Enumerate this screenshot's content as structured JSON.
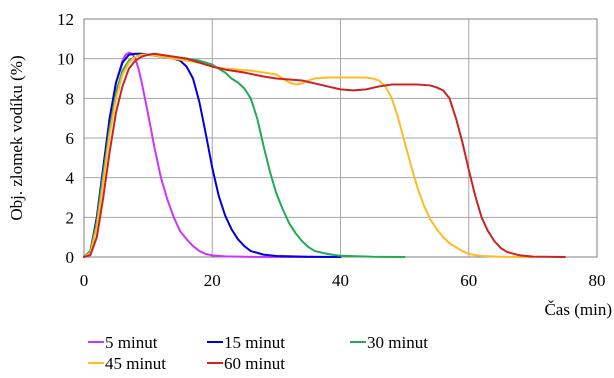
{
  "chart_data": {
    "type": "line",
    "title": "",
    "xlabel": "Čas (min)",
    "ylabel": "Obj. zlomek vodíku (%)",
    "xlim": [
      0,
      80
    ],
    "ylim": [
      0,
      12
    ],
    "xticks": [
      0,
      20,
      40,
      60,
      80
    ],
    "yticks": [
      0,
      2,
      4,
      6,
      8,
      10,
      12
    ],
    "grid": true,
    "legend_position": "bottom",
    "series": [
      {
        "name": "5 minut",
        "color": "#cc33ff",
        "x": [
          0,
          1,
          2,
          3,
          4,
          5,
          6,
          6.5,
          7,
          7.5,
          8,
          8.5,
          9,
          10,
          11,
          12,
          13,
          14,
          15,
          16,
          17,
          18,
          19,
          20,
          22,
          25,
          30,
          35,
          40
        ],
        "y": [
          0,
          0.3,
          2.0,
          4.5,
          7.0,
          8.8,
          9.9,
          10.2,
          10.3,
          10.25,
          10.0,
          9.5,
          8.8,
          7.2,
          5.5,
          4.0,
          2.9,
          2.0,
          1.3,
          0.9,
          0.55,
          0.3,
          0.15,
          0.08,
          0.03,
          0.01,
          0,
          0,
          0
        ]
      },
      {
        "name": "15 minut",
        "color": "#0000dd",
        "x": [
          0,
          1,
          2,
          3,
          4,
          5,
          6,
          7,
          8,
          9,
          10,
          12,
          14,
          15,
          16,
          17,
          18,
          19,
          20,
          21,
          22,
          23,
          24,
          25,
          26,
          28,
          30,
          35,
          40
        ],
        "y": [
          0,
          0.3,
          2.0,
          4.5,
          7.0,
          8.8,
          9.8,
          10.2,
          10.25,
          10.25,
          10.2,
          10.1,
          10.0,
          9.9,
          9.6,
          9.0,
          7.8,
          6.2,
          4.5,
          3.1,
          2.1,
          1.4,
          0.9,
          0.55,
          0.3,
          0.12,
          0.05,
          0.01,
          0
        ]
      },
      {
        "name": "30 minut",
        "color": "#22aa55",
        "x": [
          0,
          1,
          2,
          3,
          4,
          5,
          6,
          7,
          8,
          9,
          10,
          12,
          14,
          16,
          18,
          20,
          22,
          23,
          24,
          25,
          26,
          27,
          28,
          29,
          30,
          31,
          32,
          33,
          34,
          35,
          36,
          38,
          40,
          45,
          50
        ],
        "y": [
          0,
          0.3,
          1.8,
          4.2,
          6.5,
          8.3,
          9.4,
          9.9,
          10.1,
          10.2,
          10.2,
          10.15,
          10.1,
          10.0,
          9.9,
          9.7,
          9.3,
          9.0,
          8.8,
          8.5,
          8.0,
          7.0,
          5.6,
          4.3,
          3.2,
          2.4,
          1.7,
          1.2,
          0.8,
          0.5,
          0.3,
          0.15,
          0.06,
          0.01,
          0
        ]
      },
      {
        "name": "45 minut",
        "color": "#ffbb22",
        "x": [
          0,
          1,
          2,
          3,
          4,
          5,
          6,
          7,
          8,
          9,
          10,
          12,
          14,
          16,
          18,
          20,
          22,
          24,
          26,
          28,
          30,
          31,
          32,
          33,
          34,
          35,
          36,
          38,
          40,
          42,
          44,
          45,
          46,
          47,
          48,
          49,
          50,
          51,
          52,
          53,
          54,
          55,
          56,
          57,
          58,
          59,
          60,
          62,
          65,
          70
        ],
        "y": [
          0,
          0.2,
          1.5,
          3.8,
          6.2,
          8.0,
          9.2,
          9.8,
          10.1,
          10.2,
          10.2,
          10.1,
          10.0,
          9.9,
          9.8,
          9.6,
          9.5,
          9.45,
          9.4,
          9.3,
          9.2,
          9.0,
          8.8,
          8.7,
          8.75,
          8.9,
          9.0,
          9.05,
          9.05,
          9.05,
          9.05,
          9.0,
          8.9,
          8.6,
          8.0,
          7.0,
          5.8,
          4.6,
          3.5,
          2.6,
          1.9,
          1.4,
          1.0,
          0.7,
          0.5,
          0.3,
          0.15,
          0.05,
          0.01,
          0
        ]
      },
      {
        "name": "60 minut",
        "color": "#cc2222",
        "x": [
          0,
          1,
          2,
          3,
          4,
          5,
          6,
          7,
          8,
          9,
          10,
          11,
          12,
          14,
          16,
          18,
          20,
          22,
          25,
          28,
          30,
          32,
          34,
          36,
          38,
          40,
          42,
          44,
          46,
          48,
          50,
          52,
          54,
          55,
          56,
          57,
          58,
          59,
          60,
          61,
          62,
          63,
          64,
          65,
          66,
          68,
          70,
          75
        ],
        "y": [
          0,
          0.1,
          1.0,
          3.0,
          5.3,
          7.3,
          8.6,
          9.5,
          9.9,
          10.1,
          10.2,
          10.25,
          10.2,
          10.1,
          10.0,
          9.8,
          9.6,
          9.45,
          9.3,
          9.1,
          9.0,
          8.95,
          8.9,
          8.75,
          8.6,
          8.45,
          8.4,
          8.45,
          8.6,
          8.7,
          8.7,
          8.7,
          8.65,
          8.55,
          8.4,
          8.0,
          7.0,
          5.8,
          4.4,
          3.1,
          2.0,
          1.3,
          0.8,
          0.45,
          0.25,
          0.08,
          0.02,
          0
        ]
      }
    ]
  }
}
